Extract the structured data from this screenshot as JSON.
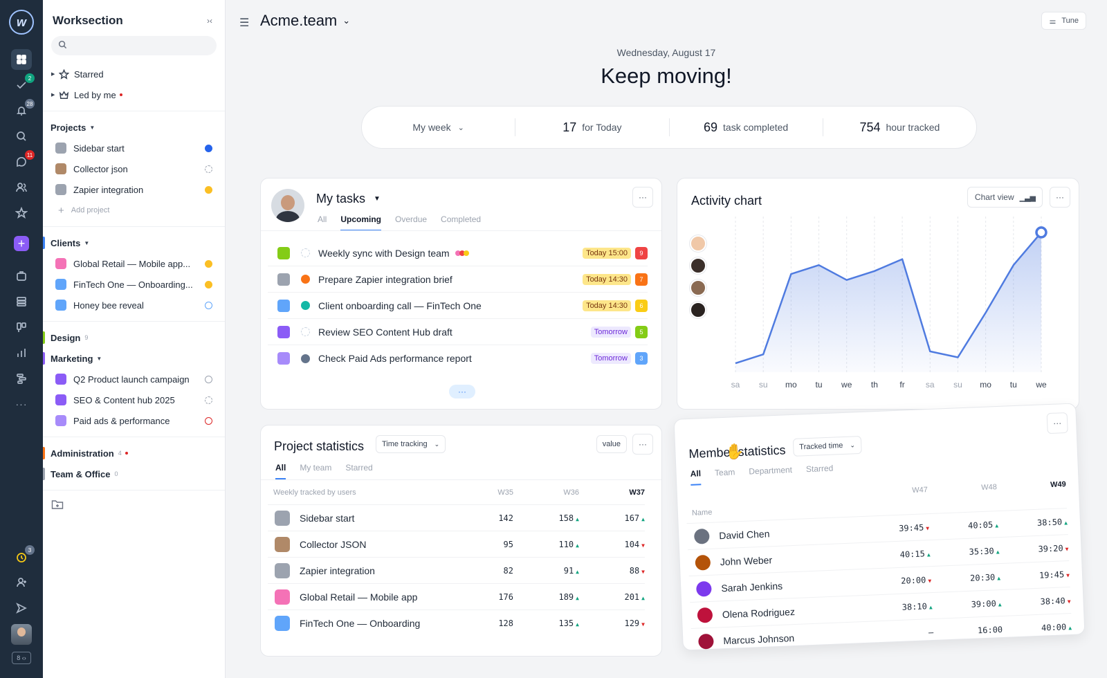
{
  "rail": {
    "logo": "w",
    "badges": {
      "tasks": "2",
      "notifications": "28",
      "messages": "11",
      "timer": "3"
    },
    "shortcut": "8 ‹›"
  },
  "sidebar": {
    "title": "Worksection",
    "search_placeholder": "",
    "starred": "Starred",
    "led_by_me": "Led by me",
    "sections": [
      {
        "label": "Projects",
        "color": "",
        "count": "",
        "items": [
          {
            "label": "Sidebar start",
            "icon_color": "#9ca3af",
            "status": "done"
          },
          {
            "label": "Collector json",
            "icon_color": "#b08968",
            "status": "dashed"
          },
          {
            "label": "Zapier integration",
            "icon_color": "#9ca3af",
            "status": "warn"
          }
        ]
      },
      {
        "label": "Clients",
        "color": "#3b82f6",
        "count": "",
        "items": [
          {
            "label": "Global Retail — Mobile app...",
            "icon_color": "#f472b6",
            "status": "warn"
          },
          {
            "label": "FinTech One — Onboarding...",
            "icon_color": "#60a5fa",
            "status": "warn"
          },
          {
            "label": "Honey bee reveal",
            "icon_color": "#60a5fa",
            "status": "hex"
          }
        ]
      },
      {
        "label": "Design",
        "color": "#84cc16",
        "count": "9",
        "items": []
      },
      {
        "label": "Marketing",
        "color": "#8b5cf6",
        "count": "",
        "items": [
          {
            "label": "Q2 Product launch campaign",
            "icon_color": "#8b5cf6",
            "status": "hex-gray"
          },
          {
            "label": "SEO & Content hub 2025",
            "icon_color": "#8b5cf6",
            "status": "dashed"
          },
          {
            "label": "Paid ads & performance",
            "icon_color": "#a78bfa",
            "status": "stop"
          }
        ]
      },
      {
        "label": "Administration",
        "color": "#f97316",
        "count": "4",
        "items": []
      },
      {
        "label": "Team & Office",
        "color": "#9ca3af",
        "count": "0",
        "items": []
      }
    ],
    "add_project": "Add project"
  },
  "header": {
    "workspace": "Acme.team",
    "tune": "Tune",
    "date": "Wednesday, August 17",
    "hero": "Keep moving!"
  },
  "stats": {
    "period": "My week",
    "today_num": "17",
    "today_label": "for Today",
    "completed_num": "69",
    "completed_label": "task completed",
    "hours_num": "754",
    "hours_label": "hour tracked"
  },
  "my_tasks": {
    "title": "My tasks",
    "tabs": [
      "All",
      "Upcoming",
      "Overdue",
      "Completed"
    ],
    "items": [
      {
        "name": "Weekly sync with Design team",
        "due": "Today 15:00",
        "due_bg": "#fde68a",
        "count": "9",
        "count_color": "#ef4444",
        "icon_color": "#84cc16",
        "status_color": "#cbd5e1",
        "dots": [
          "#f472b6",
          "#ef4444",
          "#facc15"
        ]
      },
      {
        "name": "Prepare Zapier integration brief",
        "due": "Today 14:30",
        "due_bg": "#fde68a",
        "count": "7",
        "count_color": "#f97316",
        "icon_color": "#9ca3af",
        "status_color": "#f97316",
        "dots": []
      },
      {
        "name": "Client onboarding call — FinTech One",
        "due": "Today 14:30",
        "due_bg": "#fde68a",
        "count": "6",
        "count_color": "#facc15",
        "icon_color": "#60a5fa",
        "status_color": "#14b8a6",
        "dots": []
      },
      {
        "name": "Review SEO Content Hub draft",
        "due": "Tomorrow",
        "due_bg": "#ede9fe",
        "count": "5",
        "count_color": "#84cc16",
        "icon_color": "#8b5cf6",
        "status_color": "#cbd5e1",
        "dots": []
      },
      {
        "name": "Check Paid Ads performance report",
        "due": "Tomorrow",
        "due_bg": "#ede9fe",
        "count": "3",
        "count_color": "#60a5fa",
        "icon_color": "#a78bfa",
        "status_color": "#64748b",
        "dots": []
      }
    ],
    "more": "···"
  },
  "activity": {
    "title": "Activity chart",
    "view_label": "Chart view"
  },
  "chart_data": {
    "type": "area",
    "title": "Activity chart",
    "categories": [
      "sa",
      "su",
      "mo",
      "tu",
      "we",
      "th",
      "fr",
      "sa",
      "su",
      "mo",
      "tu",
      "we"
    ],
    "values": [
      3,
      6,
      33,
      36,
      31,
      34,
      38,
      7,
      5,
      20,
      36,
      47
    ],
    "ylim": [
      0,
      50
    ],
    "color": "#4f7be0",
    "grid": "vertical-dashed",
    "highlight_index": 11
  },
  "project_stats": {
    "title": "Project statistics",
    "filter": "Time tracking",
    "value_btn": "value",
    "tabs": [
      "All",
      "My team",
      "Starred"
    ],
    "col_name": "Weekly tracked by users",
    "cols": [
      "W35",
      "W36",
      "W37"
    ],
    "rows": [
      {
        "name": "Sidebar start",
        "icon_color": "#9ca3af",
        "v": [
          "142",
          "158",
          "167"
        ],
        "t": [
          "",
          "up",
          "up"
        ]
      },
      {
        "name": "Collector JSON",
        "icon_color": "#b08968",
        "v": [
          "95",
          "110",
          "104"
        ],
        "t": [
          "",
          "up",
          "dn"
        ]
      },
      {
        "name": "Zapier integration",
        "icon_color": "#9ca3af",
        "v": [
          "82",
          "91",
          "88"
        ],
        "t": [
          "",
          "up",
          "dn"
        ]
      },
      {
        "name": "Global Retail — Mobile app",
        "icon_color": "#f472b6",
        "v": [
          "176",
          "189",
          "201"
        ],
        "t": [
          "",
          "up",
          "up"
        ]
      },
      {
        "name": "FinTech One — Onboarding",
        "icon_color": "#60a5fa",
        "v": [
          "128",
          "135",
          "129"
        ],
        "t": [
          "",
          "up",
          "dn"
        ]
      }
    ]
  },
  "member_stats": {
    "title": "Member statistics",
    "filter": "Tracked time",
    "tabs": [
      "All",
      "Team",
      "Department",
      "Starred"
    ],
    "col_name": "Name",
    "cols": [
      "W47",
      "W48",
      "W49"
    ],
    "rows": [
      {
        "name": "David Chen",
        "color": "#6b7280",
        "v": [
          "39:45",
          "40:05",
          "38:50"
        ],
        "t": [
          "dn",
          "up",
          "up"
        ]
      },
      {
        "name": "John Weber",
        "color": "#b45309",
        "v": [
          "40:15",
          "35:30",
          "39:20"
        ],
        "t": [
          "up",
          "up",
          "dn"
        ]
      },
      {
        "name": "Sarah Jenkins",
        "color": "#7c3aed",
        "v": [
          "20:00",
          "20:30",
          "19:45"
        ],
        "t": [
          "dn",
          "up",
          "dn"
        ]
      },
      {
        "name": "Olena Rodriguez",
        "color": "#be123c",
        "v": [
          "38:10",
          "39:00",
          "38:40"
        ],
        "t": [
          "up",
          "up",
          "dn"
        ]
      },
      {
        "name": "Marcus Johnson",
        "color": "#9f1239",
        "v": [
          "–",
          "16:00",
          "40:00"
        ],
        "t": [
          "",
          "",
          "up"
        ]
      }
    ]
  }
}
